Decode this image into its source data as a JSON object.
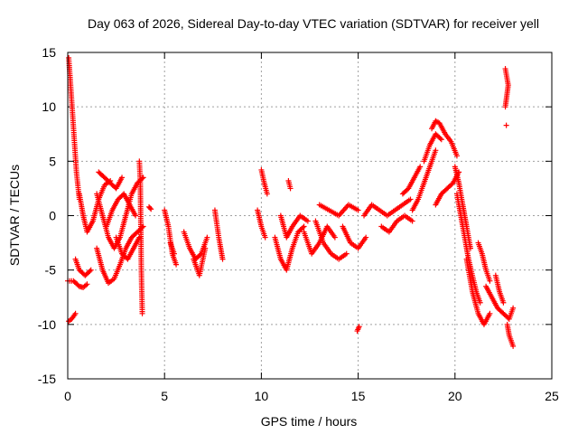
{
  "chart_data": {
    "type": "scatter",
    "title": "Day 063 of 2026, Sidereal Day-to-day VTEC variation (SDTVAR) for receiver yell",
    "xlabel": "GPS time / hours",
    "ylabel": "SDTVAR / TECUs",
    "xlim": [
      0,
      25
    ],
    "ylim": [
      -15,
      15
    ],
    "x_ticks": [
      0,
      5,
      10,
      15,
      20,
      25
    ],
    "x_tick_labels": [
      "0",
      "5",
      "10",
      "15",
      "20",
      "25"
    ],
    "y_ticks": [
      -15,
      -10,
      -5,
      0,
      5,
      10,
      15
    ],
    "y_tick_labels": [
      "-15",
      "-10",
      "-5",
      "0",
      "5",
      "10",
      "15"
    ],
    "grid": true,
    "marker": "+",
    "color": "#ff0000",
    "segments": [
      {
        "x": [
          0.05,
          0.15,
          0.3,
          0.45,
          0.6
        ],
        "y": [
          14.5,
          12,
          8,
          4,
          1.5
        ]
      },
      {
        "x": [
          0.05,
          0.2,
          0.4
        ],
        "y": [
          -9.7,
          -9.5,
          -9
        ]
      },
      {
        "x": [
          0.0,
          0.3,
          0.6,
          0.8,
          1.0
        ],
        "y": [
          -6,
          -6,
          -6.5,
          -6.6,
          -6.3
        ]
      },
      {
        "x": [
          0.4,
          0.6,
          0.9,
          1.2
        ],
        "y": [
          -4,
          -5,
          -5.5,
          -5
        ]
      },
      {
        "x": [
          0.6,
          0.8,
          1.0,
          1.3,
          1.6,
          1.9,
          2.2
        ],
        "y": [
          2,
          0,
          -1.5,
          -0.5,
          1.5,
          2.8,
          3.2
        ]
      },
      {
        "x": [
          1.5,
          1.8,
          2.1,
          2.4,
          2.7,
          3.0,
          3.3,
          3.6,
          3.9
        ],
        "y": [
          -3,
          -5,
          -6.2,
          -5.8,
          -4.5,
          -3,
          -2,
          -1.5,
          -1
        ]
      },
      {
        "x": [
          1.5,
          1.8,
          2.1,
          2.4,
          2.7,
          3.0,
          3.3,
          3.6,
          3.9
        ],
        "y": [
          2,
          0,
          -2,
          -3,
          -2,
          0,
          2,
          3,
          3.5
        ]
      },
      {
        "x": [
          2.0,
          2.3,
          2.6,
          2.9,
          3.2,
          3.5
        ],
        "y": [
          -1,
          0.5,
          1.5,
          2,
          1,
          0
        ]
      },
      {
        "x": [
          2.5,
          2.8,
          3.1,
          3.4,
          3.7
        ],
        "y": [
          -2,
          -3.5,
          -4,
          -3,
          -2
        ]
      },
      {
        "x": [
          1.6,
          1.9,
          2.2,
          2.5,
          2.8
        ],
        "y": [
          4,
          3.5,
          3,
          2.5,
          3.5
        ]
      },
      {
        "x": [
          3.7,
          3.75,
          3.8,
          3.85
        ],
        "y": [
          5,
          3,
          -5,
          -9
        ]
      },
      {
        "x": [
          4.2,
          4.3
        ],
        "y": [
          0.8,
          0.6
        ]
      },
      {
        "x": [
          5.0,
          5.2,
          5.4,
          5.6
        ],
        "y": [
          0.5,
          -1,
          -3.5,
          -4.5
        ]
      },
      {
        "x": [
          5.3,
          5.5
        ],
        "y": [
          -2.5,
          -3.5
        ]
      },
      {
        "x": [
          6.0,
          6.3,
          6.6,
          6.9,
          7.2
        ],
        "y": [
          -1.5,
          -3,
          -4,
          -3.5,
          -2
        ]
      },
      {
        "x": [
          6.5,
          6.8,
          7.1
        ],
        "y": [
          -4,
          -5.5,
          -3
        ]
      },
      {
        "x": [
          7.6,
          7.8,
          8.0
        ],
        "y": [
          0.5,
          -2,
          -4
        ]
      },
      {
        "x": [
          9.8,
          10.0,
          10.2
        ],
        "y": [
          0.5,
          -1,
          -2
        ]
      },
      {
        "x": [
          10.0,
          10.15,
          10.3
        ],
        "y": [
          4.2,
          3,
          2
        ]
      },
      {
        "x": [
          10.7,
          11.0,
          11.3,
          11.6,
          11.9,
          12.2
        ],
        "y": [
          -2,
          -4,
          -5,
          -3,
          -1.5,
          -1
        ]
      },
      {
        "x": [
          11.0,
          11.3,
          11.6,
          12.0,
          12.4
        ],
        "y": [
          0,
          -2,
          -1,
          0,
          -0.5
        ]
      },
      {
        "x": [
          11.4,
          11.5
        ],
        "y": [
          3.2,
          2.5
        ]
      },
      {
        "x": [
          12.2,
          12.6,
          13.0,
          13.4,
          13.8
        ],
        "y": [
          -1.5,
          -3.5,
          -2.5,
          -1,
          -2
        ]
      },
      {
        "x": [
          12.8,
          13.2,
          13.6,
          14.0,
          14.4
        ],
        "y": [
          -0.5,
          -2.5,
          -3.5,
          -4,
          -3.5
        ]
      },
      {
        "x": [
          13.0,
          13.5,
          14.0,
          14.5,
          15.0
        ],
        "y": [
          1,
          0.5,
          0,
          1,
          0.5
        ]
      },
      {
        "x": [
          14.2,
          14.6,
          15.0,
          15.4
        ],
        "y": [
          -1,
          -2.5,
          -3,
          -2
        ]
      },
      {
        "x": [
          14.95,
          15.05
        ],
        "y": [
          -10.6,
          -10.2
        ]
      },
      {
        "x": [
          15.3,
          15.7,
          16.1,
          16.5,
          16.9,
          17.3,
          17.7
        ],
        "y": [
          0,
          1,
          0.5,
          0,
          0.5,
          1,
          1.5
        ]
      },
      {
        "x": [
          16.2,
          16.6,
          17.0,
          17.4,
          17.8
        ],
        "y": [
          -1,
          -1.5,
          -0.5,
          0,
          -0.5
        ]
      },
      {
        "x": [
          17.8,
          18.1,
          18.4,
          18.7,
          19.0
        ],
        "y": [
          0.5,
          1.5,
          3,
          4.5,
          6
        ]
      },
      {
        "x": [
          17.3,
          17.6,
          17.9,
          18.2
        ],
        "y": [
          2,
          2.5,
          3.5,
          4.5
        ]
      },
      {
        "x": [
          18.8,
          19.0,
          19.2,
          19.5,
          19.8,
          20.1
        ],
        "y": [
          8,
          8.7,
          8.5,
          7.5,
          6.8,
          5.5
        ]
      },
      {
        "x": [
          18.4,
          18.7,
          19.0,
          19.3
        ],
        "y": [
          5,
          6.5,
          7.5,
          7
        ]
      },
      {
        "x": [
          19.0,
          19.3,
          19.6,
          19.9,
          20.2
        ],
        "y": [
          1,
          2,
          2.5,
          3,
          4
        ]
      },
      {
        "x": [
          20.0,
          20.2,
          20.4,
          20.6,
          20.8
        ],
        "y": [
          4.5,
          3,
          1,
          -1,
          -3
        ]
      },
      {
        "x": [
          20.1,
          20.3,
          20.5,
          20.7,
          20.9,
          21.1,
          21.3
        ],
        "y": [
          2,
          0,
          -2,
          -4,
          -5.5,
          -7,
          -8
        ]
      },
      {
        "x": [
          20.6,
          20.9,
          21.2,
          21.5,
          21.8
        ],
        "y": [
          -4,
          -7,
          -9,
          -10,
          -9
        ]
      },
      {
        "x": [
          21.2,
          21.4,
          21.6,
          21.8
        ],
        "y": [
          -2.5,
          -3.5,
          -5,
          -6
        ]
      },
      {
        "x": [
          21.6,
          21.9,
          22.2,
          22.5,
          22.8,
          23.0
        ],
        "y": [
          -6.5,
          -7.5,
          -8.5,
          -9,
          -9.5,
          -8.5
        ]
      },
      {
        "x": [
          22.1,
          22.3,
          22.5
        ],
        "y": [
          -5.5,
          -7,
          -8
        ]
      },
      {
        "x": [
          22.7,
          22.8,
          22.9,
          23.0
        ],
        "y": [
          -10,
          -11,
          -11.5,
          -12
        ]
      },
      {
        "x": [
          22.6,
          22.65,
          22.7,
          22.75,
          22.6
        ],
        "y": [
          13.5,
          13,
          12.5,
          12,
          10
        ]
      },
      {
        "x": [
          22.65
        ],
        "y": [
          8.3
        ]
      }
    ]
  }
}
